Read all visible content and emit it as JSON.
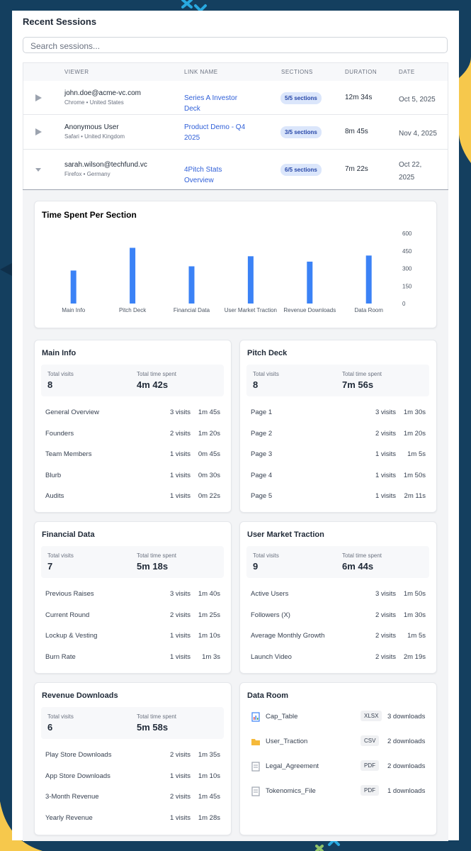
{
  "header": {
    "title": "Recent Sessions",
    "search_placeholder": "Search sessions..."
  },
  "table": {
    "columns": [
      "VIEWER",
      "LINK NAME",
      "SECTIONS",
      "DURATION",
      "DATE"
    ],
    "rows": [
      {
        "viewer": "john.doe@acme-vc.com",
        "meta": "Chrome • United States",
        "link": "Series A Investor Deck",
        "sections": "5/5 sections",
        "duration": "12m 34s",
        "date": "Oct 5, 2025"
      },
      {
        "viewer": "Anonymous User",
        "meta": "Safari • United Kingdom",
        "link": "Product Demo - Q4 2025",
        "sections": "3/5 sections",
        "duration": "8m 45s",
        "date": "Nov 4, 2025"
      },
      {
        "viewer": "sarah.wilson@techfund.vc",
        "meta": "Firefox • Germany",
        "link": "4Pitch Stats Overview",
        "sections": "6/5 sections",
        "duration": "7m 22s",
        "date": "Oct 22, 2025"
      }
    ]
  },
  "chart_data": {
    "type": "bar",
    "title": "Time Spent Per Section",
    "categories": [
      "Main Info",
      "Pitch Deck",
      "Financial Data",
      "User Market Traction",
      "Revenue Downloads",
      "Data Room"
    ],
    "values": [
      282,
      476,
      318,
      404,
      358,
      410
    ],
    "color": "#3b82f6",
    "ylim": [
      0,
      600
    ],
    "yticks": [
      0,
      150,
      300,
      450,
      600
    ]
  },
  "sections": [
    {
      "title": "Main Info",
      "visits_label": "Total visits",
      "visits": 8,
      "time_label": "Total time spent",
      "time": "4m 42s",
      "items": [
        {
          "name": "General Overview",
          "visits": "3 visits",
          "time": "1m 45s"
        },
        {
          "name": "Founders",
          "visits": "2 visits",
          "time": "1m 20s"
        },
        {
          "name": "Team Members",
          "visits": "1 visits",
          "time": "0m 45s"
        },
        {
          "name": "Blurb",
          "visits": "1 visits",
          "time": "0m 30s"
        },
        {
          "name": "Audits",
          "visits": "1 visits",
          "time": "0m 22s"
        }
      ]
    },
    {
      "title": "Pitch Deck",
      "visits_label": "Total visits",
      "visits": 8,
      "time_label": "Total time spent",
      "time": "7m 56s",
      "items": [
        {
          "name": "Page 1",
          "visits": "3 visits",
          "time": "1m 30s"
        },
        {
          "name": "Page 2",
          "visits": "2 visits",
          "time": "1m 20s"
        },
        {
          "name": "Page 3",
          "visits": "1 visits",
          "time": "1m 5s"
        },
        {
          "name": "Page 4",
          "visits": "1 visits",
          "time": "1m 50s"
        },
        {
          "name": "Page 5",
          "visits": "1 visits",
          "time": "2m 11s"
        }
      ]
    },
    {
      "title": "Financial Data",
      "visits_label": "Total visits",
      "visits": 7,
      "time_label": "Total time spent",
      "time": "5m 18s",
      "items": [
        {
          "name": "Previous Raises",
          "visits": "3 visits",
          "time": "1m 40s"
        },
        {
          "name": "Current Round",
          "visits": "2 visits",
          "time": "1m 25s"
        },
        {
          "name": "Lockup & Vesting",
          "visits": "1 visits",
          "time": "1m 10s"
        },
        {
          "name": "Burn Rate",
          "visits": "1 visits",
          "time": "1m 3s"
        }
      ]
    },
    {
      "title": "User Market Traction",
      "visits_label": "Total visits",
      "visits": 9,
      "time_label": "Total time spent",
      "time": "6m 44s",
      "items": [
        {
          "name": "Active Users",
          "visits": "3 visits",
          "time": "1m 50s"
        },
        {
          "name": "Followers (X)",
          "visits": "2 visits",
          "time": "1m 30s"
        },
        {
          "name": "Average Monthly Growth",
          "visits": "2 visits",
          "time": "1m 5s"
        },
        {
          "name": "Launch Video",
          "visits": "2 visits",
          "time": "2m 19s"
        }
      ]
    },
    {
      "title": "Revenue Downloads",
      "visits_label": "Total visits",
      "visits": 6,
      "time_label": "Total time spent",
      "time": "5m 58s",
      "items": [
        {
          "name": "Play Store Downloads",
          "visits": "2 visits",
          "time": "1m 35s"
        },
        {
          "name": "App Store Downloads",
          "visits": "1 visits",
          "time": "1m 10s"
        },
        {
          "name": "3-Month Revenue",
          "visits": "2 visits",
          "time": "1m 45s"
        },
        {
          "name": "Yearly Revenue",
          "visits": "1 visits",
          "time": "1m 28s"
        }
      ]
    }
  ],
  "data_room": {
    "title": "Data Room",
    "files": [
      {
        "name": "Cap_Table",
        "ext": "XLSX",
        "downloads": "3 downloads"
      },
      {
        "name": "User_Traction",
        "ext": "CSV",
        "downloads": "2 downloads"
      },
      {
        "name": "Legal_Agreement",
        "ext": "PDF",
        "downloads": "2 downloads"
      },
      {
        "name": "Tokenomics_File",
        "ext": "PDF",
        "downloads": "1 downloads"
      }
    ]
  }
}
